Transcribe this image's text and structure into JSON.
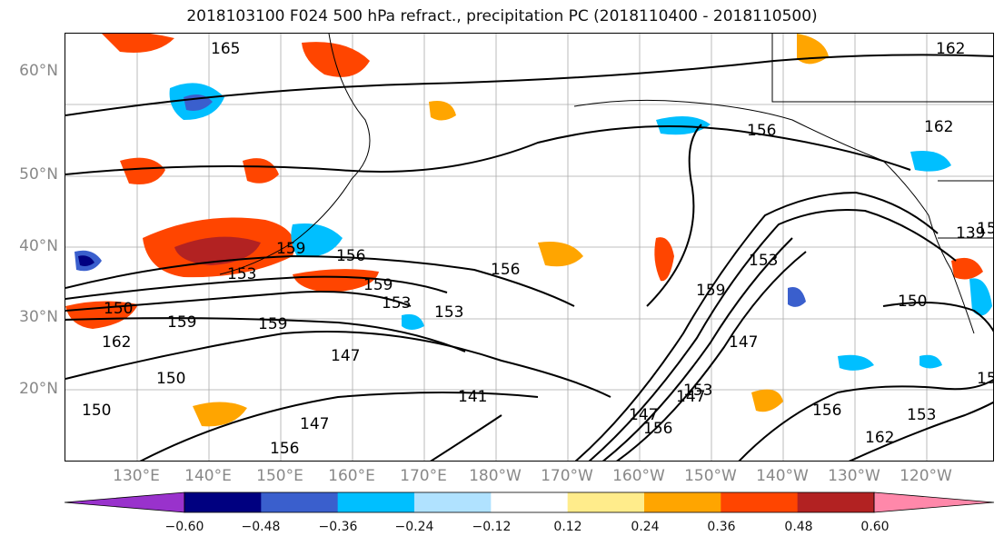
{
  "title": "2018103100 F024 500 hPa refract., precipitation PC (2018110400 - 2018110500)",
  "lat_labels": [
    "60°N",
    "50°N",
    "40°N",
    "30°N",
    "20°N"
  ],
  "lon_labels": [
    "130°E",
    "140°E",
    "150°E",
    "160°E",
    "170°E",
    "180°W",
    "170°W",
    "160°W",
    "150°W",
    "140°W",
    "130°W",
    "120°W"
  ],
  "contour_labels": [
    "165",
    "156",
    "162",
    "162",
    "159",
    "156",
    "153",
    "156",
    "159",
    "153",
    "150",
    "153",
    "159",
    "159",
    "162",
    "147",
    "150",
    "150",
    "147",
    "141",
    "147",
    "156",
    "147",
    "156",
    "153",
    "159",
    "150",
    "147",
    "153",
    "156",
    "162",
    "153",
    "15",
    "15",
    "139"
  ],
  "colorbar": {
    "ticks": [
      "−0.60",
      "−0.48",
      "−0.36",
      "−0.24",
      "−0.12",
      "0.12",
      "0.24",
      "0.36",
      "0.48",
      "0.60"
    ],
    "colors": [
      "#9932cc",
      "#000080",
      "#3a5fcd",
      "#00bfff",
      "#b0e2ff",
      "#ffffff",
      "#ffec8b",
      "#ffa500",
      "#ff4500",
      "#b22222",
      "#ff88aa"
    ]
  }
}
